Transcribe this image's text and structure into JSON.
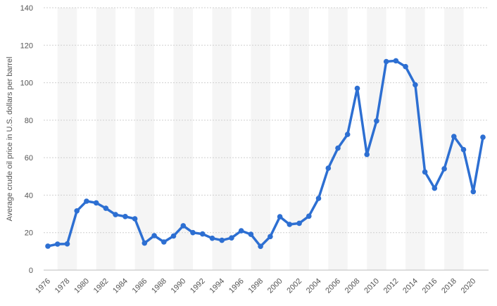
{
  "chart_data": {
    "type": "line",
    "ylabel": "Average crude oil price in U.S. dollars per barrel",
    "xlabel": "",
    "ylim": [
      0,
      140
    ],
    "yticks": [
      0,
      20,
      40,
      60,
      80,
      100,
      120,
      140
    ],
    "xlim": [
      1976,
      2021
    ],
    "xticks": [
      1976,
      1978,
      1980,
      1982,
      1984,
      1986,
      1988,
      1990,
      1992,
      1994,
      1996,
      1998,
      2000,
      2002,
      2004,
      2006,
      2008,
      2010,
      2012,
      2014,
      2016,
      2018,
      2020
    ],
    "grid": true,
    "series": [
      {
        "color": "#2d6fd2",
        "x": [
          1976,
          1977,
          1978,
          1979,
          1980,
          1981,
          1982,
          1983,
          1984,
          1985,
          1986,
          1987,
          1988,
          1989,
          1990,
          1991,
          1992,
          1993,
          1994,
          1995,
          1996,
          1997,
          1998,
          1999,
          2000,
          2001,
          2002,
          2003,
          2004,
          2005,
          2006,
          2007,
          2008,
          2009,
          2010,
          2011,
          2012,
          2013,
          2014,
          2015,
          2016,
          2017,
          2018,
          2019,
          2020,
          2021
        ],
        "values": [
          12.8,
          13.9,
          14.0,
          31.6,
          36.8,
          35.9,
          33.0,
          29.6,
          28.6,
          27.4,
          14.4,
          18.4,
          15.0,
          18.2,
          23.7,
          20.0,
          19.3,
          17.0,
          15.9,
          17.2,
          21.0,
          19.1,
          12.7,
          17.9,
          28.5,
          24.4,
          25.0,
          28.8,
          38.3,
          54.4,
          65.1,
          72.4,
          97.0,
          61.7,
          79.6,
          111.3,
          111.7,
          108.6,
          98.9,
          52.4,
          43.7,
          54.1,
          71.3,
          64.3,
          41.9,
          70.9
        ]
      }
    ]
  }
}
